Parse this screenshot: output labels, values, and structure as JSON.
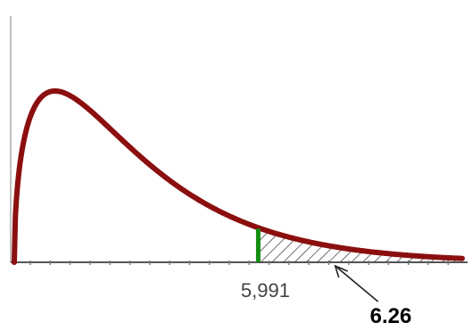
{
  "chart_data": {
    "type": "area",
    "title": "",
    "xlabel": "",
    "ylabel": "",
    "curve": {
      "x": [
        0,
        0.25,
        0.5,
        0.75,
        1,
        1.25,
        1.5,
        1.75,
        2,
        2.25,
        2.5,
        2.75,
        3,
        3.25,
        3.5,
        3.75,
        4,
        4.25,
        4.5,
        4.75,
        5,
        5.25,
        5.5,
        5.75,
        6,
        6.25,
        6.5,
        6.75,
        7,
        7.25,
        7.5,
        7.75,
        8,
        8.25,
        8.5,
        8.75,
        9,
        9.25,
        9.5,
        9.75,
        10,
        10.25,
        10.5,
        10.75,
        11
      ]
    },
    "critical_value": {
      "value": 5.991,
      "label": "5,991"
    },
    "test_statistic": {
      "value": 6.26,
      "label": "6.26"
    },
    "xlim": [
      0,
      11
    ],
    "colors": {
      "curve": "#8b0f0f",
      "critical_line": "#128c12",
      "hatch": "#333333",
      "axis": "#555555"
    }
  }
}
